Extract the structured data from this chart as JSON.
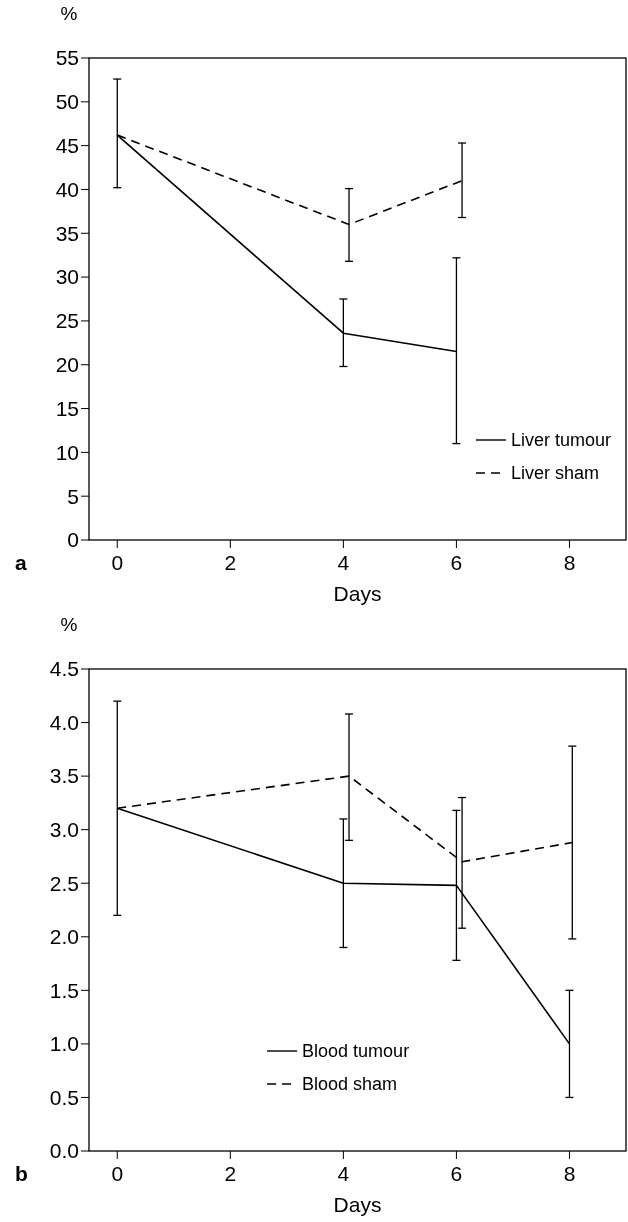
{
  "chart_data": [
    {
      "type": "line",
      "xlabel": "Days",
      "ylabel": "%",
      "annotations": [
        "a"
      ],
      "xlim": [
        -0.5,
        9
      ],
      "xticks": [
        0,
        2,
        4,
        6,
        8
      ],
      "ylim": [
        0,
        55
      ],
      "yticks": [
        0,
        5,
        10,
        15,
        20,
        25,
        30,
        35,
        40,
        45,
        50,
        55
      ],
      "legend": "bottom right",
      "grid": false,
      "marker": "none",
      "series": [
        {
          "name": "Liver tumour",
          "color": "#000000",
          "line_style": "solid",
          "x": [
            0,
            4,
            6
          ],
          "values": [
            46.2,
            23.6,
            21.5
          ],
          "errors": [
            [
              40.2,
              52.6
            ],
            [
              19.8,
              27.5
            ],
            [
              11,
              32.2
            ]
          ]
        },
        {
          "name": "Liver sham",
          "color": "#000000",
          "line_style": "dashed",
          "x": [
            0,
            4.1,
            6.1
          ],
          "values": [
            46.2,
            36,
            41
          ],
          "errors": [
            null,
            [
              31.8,
              40.1
            ],
            [
              36.8,
              45.3
            ]
          ]
        }
      ]
    },
    {
      "type": "line",
      "xlabel": "Days",
      "ylabel": "%",
      "annotations": [
        "b"
      ],
      "xlim": [
        -0.5,
        9
      ],
      "xticks": [
        0,
        2,
        4,
        6,
        8
      ],
      "ylim": [
        0,
        4.5
      ],
      "yticks": [
        {
          "value": 0,
          "label": "0.0"
        },
        {
          "value": 0.5,
          "label": "0.5"
        },
        {
          "value": 1,
          "label": "1.0"
        },
        {
          "value": 1.5,
          "label": "1.5"
        },
        {
          "value": 2,
          "label": "2.0"
        },
        {
          "value": 2.5,
          "label": "2.5"
        },
        {
          "value": 3,
          "label": "3.0"
        },
        {
          "value": 3.5,
          "label": "3.5"
        },
        {
          "value": 4,
          "label": "4.0"
        },
        {
          "value": 4.5,
          "label": "4.5"
        }
      ],
      "legend": "bottom right",
      "grid": false,
      "marker": "none",
      "series": [
        {
          "name": "Blood tumour",
          "color": "#000000",
          "line_style": "solid",
          "x": [
            0,
            4,
            6,
            8
          ],
          "values": [
            3.2,
            2.5,
            2.48,
            1.0
          ],
          "errors": [
            [
              2.2,
              4.2
            ],
            [
              1.9,
              3.1
            ],
            [
              1.78,
              3.18
            ],
            [
              0.5,
              1.5
            ]
          ]
        },
        {
          "name": "Blood sham",
          "color": "#000000",
          "line_style": "dashed",
          "x": [
            0,
            4.1,
            6.1,
            8.05
          ],
          "values": [
            3.2,
            3.5,
            2.7,
            2.88
          ],
          "errors": [
            null,
            [
              2.9,
              4.08
            ],
            [
              2.08,
              3.3
            ],
            [
              1.98,
              3.78
            ]
          ]
        }
      ]
    }
  ]
}
